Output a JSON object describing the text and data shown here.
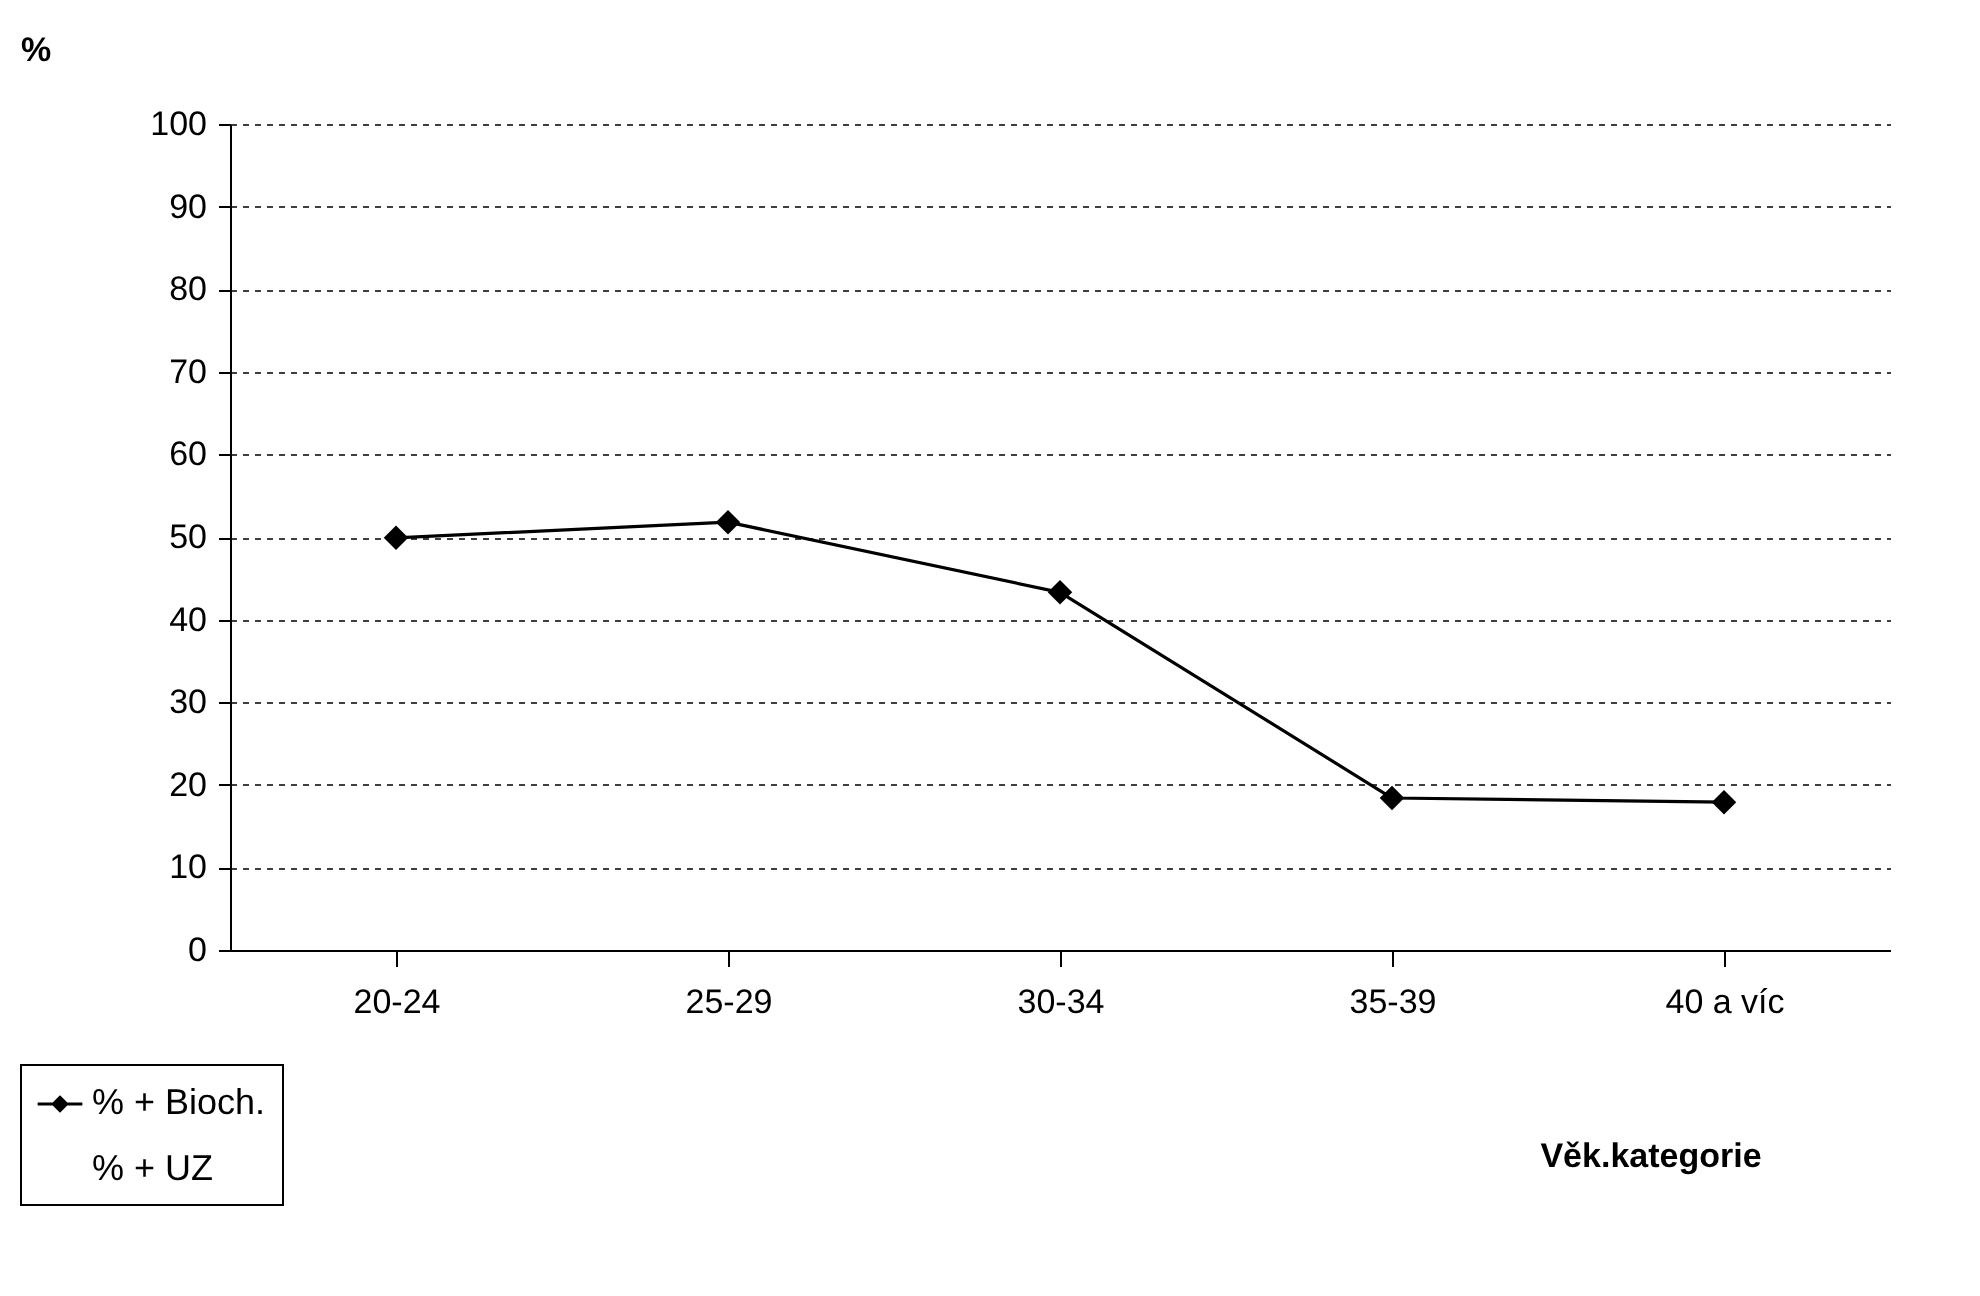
{
  "chart_data": {
    "type": "line",
    "xlabel": "Věk.kategorie",
    "ylabel": "%",
    "categories": [
      "20-24",
      "25-29",
      "30-34",
      "35-39",
      "40 a víc"
    ],
    "series": [
      {
        "name": "% + Bioch.",
        "color": "#000000",
        "values": [
          49.9,
          51.8,
          43.3,
          18.4,
          17.9
        ]
      },
      {
        "name": "% + UZ",
        "values": [
          null,
          null,
          null,
          null,
          null
        ]
      }
    ],
    "ylim": [
      0,
      100
    ],
    "yticks": [
      0,
      10,
      20,
      30,
      40,
      50,
      60,
      70,
      80,
      90,
      100
    ],
    "grid": "y",
    "legend": "bottom left",
    "marker": "diamond",
    "line_style": "solid"
  }
}
